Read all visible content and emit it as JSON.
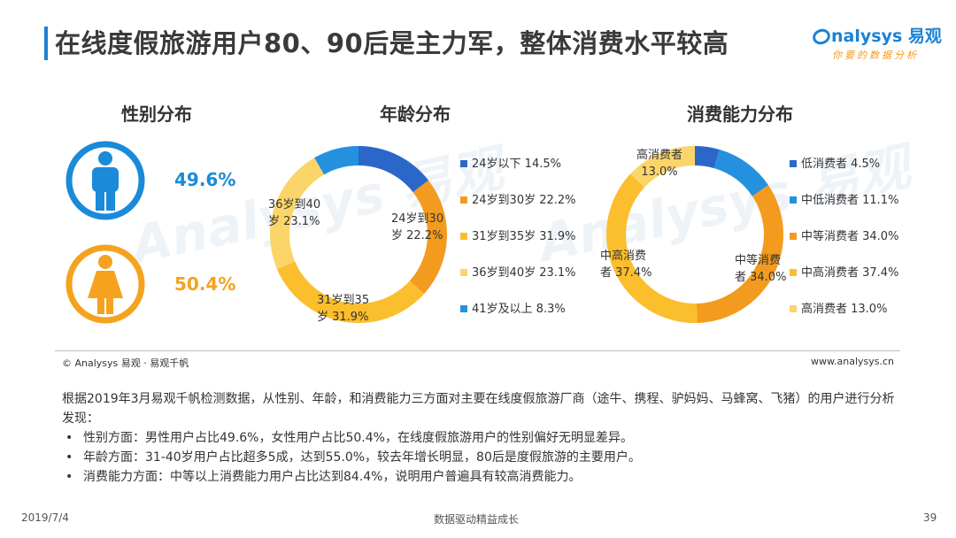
{
  "header": {
    "title": "在线度假旅游用户80、90后是主力军，整体消费水平较高",
    "logo_brand": "nalysys",
    "logo_cn": "易观",
    "logo_slogan": "你要的数据分析"
  },
  "watermark": "Analysys 易观",
  "colors": {
    "accent_blue": "#1a82d6",
    "male_blue": "#1a8ad9",
    "female_orange": "#f5a21f",
    "blue_dark": "#2a67c9",
    "blue_light": "#2491de",
    "orange": "#f39b1e",
    "yellow": "#fbbe2c",
    "pale_yellow": "#fbd56a"
  },
  "gender": {
    "title": "性别分布",
    "male_icon": "male-person-icon",
    "female_icon": "female-person-icon",
    "male_pct": "49.6%",
    "female_pct": "50.4%"
  },
  "chart_data": [
    {
      "type": "pie",
      "title": "年龄分布",
      "categories": [
        "24岁以下",
        "24岁到30岁",
        "31岁到35岁",
        "36岁到40岁",
        "41岁及以上"
      ],
      "values": [
        14.5,
        22.2,
        31.9,
        23.1,
        8.3
      ],
      "colors": [
        "#2a67c9",
        "#f39b1e",
        "#fbbe2c",
        "#fbd56a",
        "#2491de"
      ],
      "legend": [
        "24岁以下 14.5%",
        "24岁到30岁 22.2%",
        "31岁到35岁 31.9%",
        "36岁到40岁 23.1%",
        "41岁及以上 8.3%"
      ],
      "data_labels": [
        {
          "line1": "24岁到30",
          "line2": "岁 22.2%"
        },
        {
          "line1": "31岁到35",
          "line2": "岁 31.9%"
        },
        {
          "line1": "36岁到40",
          "line2": "岁 23.1%"
        }
      ],
      "legend_position": "right"
    },
    {
      "type": "pie",
      "title": "消费能力分布",
      "categories": [
        "低消费者",
        "中低消费者",
        "中等消费者",
        "中高消费者",
        "高消费者"
      ],
      "values": [
        4.5,
        11.1,
        34.0,
        37.4,
        13.0
      ],
      "colors": [
        "#2a67c9",
        "#2491de",
        "#f39b1e",
        "#fbbe2c",
        "#fbd56a"
      ],
      "legend": [
        "低消费者 4.5%",
        "中低消费者 11.1%",
        "中等消费者 34.0%",
        "中高消费者 37.4%",
        "高消费者 13.0%"
      ],
      "data_labels": [
        {
          "line1": "高消费者",
          "line2": "13.0%"
        },
        {
          "line1": "中高消费",
          "line2": "者 37.4%"
        },
        {
          "line1": "中等消费",
          "line2": "者 34.0%"
        }
      ],
      "legend_position": "right"
    }
  ],
  "footer": {
    "copyright": "© Analysys 易观 · 易观千帆",
    "website": "www.analysys.cn"
  },
  "analysis": {
    "intro": "根据2019年3月易观千帆检测数据，从性别、年龄，和消费能力三方面对主要在线度假旅游厂商（途牛、携程、驴妈妈、马蜂窝、飞猪）的用户进行分析发现：",
    "bullet_symbol": "•",
    "bullets": [
      "性别方面：男性用户占比49.6%，女性用户占比50.4%，在线度假旅游用户的性别偏好无明显差异。",
      "年龄方面：31-40岁用户占比超多5成，达到55.0%，较去年增长明显，80后是度假旅游的主要用户。",
      "消费能力方面：中等以上消费能力用户占比达到84.4%，说明用户普遍具有较高消费能力。"
    ]
  },
  "bottom": {
    "date": "2019/7/4",
    "slogan": "数据驱动精益成长",
    "page": "39"
  }
}
